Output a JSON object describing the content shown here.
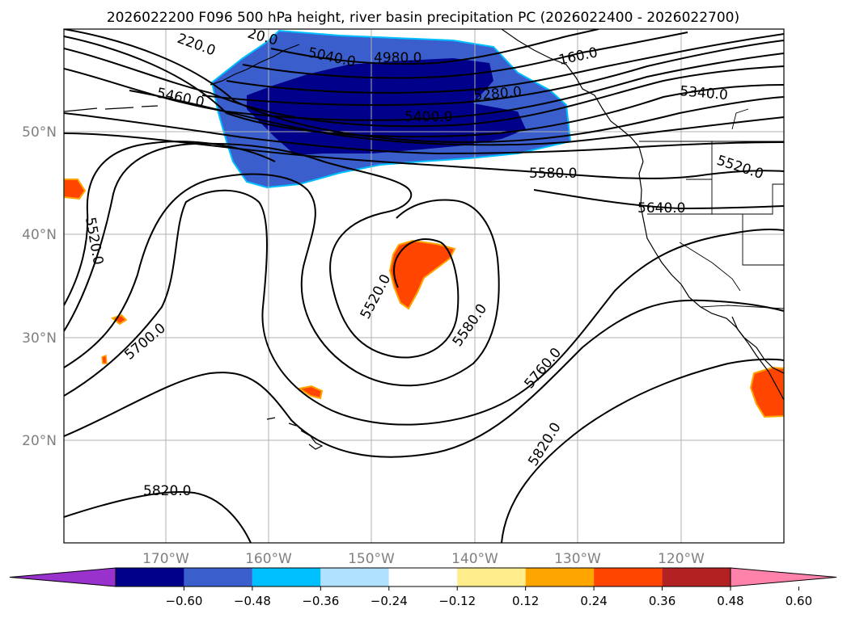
{
  "title": "2026022200 F096 500 hPa height, river basin precipitation PC (2026022400 - 2026022700)",
  "lat_labels": [
    "50°N",
    "40°N",
    "30°N",
    "20°N"
  ],
  "lon_labels": [
    "170°W",
    "160°W",
    "150°W",
    "140°W",
    "130°W",
    "120°W"
  ],
  "contour_labels": [
    "220.0",
    "20.0",
    "5040.0",
    "4980.0",
    "160.0",
    "5460.0",
    "5280.0",
    "5340.0",
    "5400.0",
    "5580.0",
    "5520.0",
    "5640.0",
    "5520.0",
    "5520.0",
    "5580.0",
    "5700.0",
    "5760.0",
    "5820.0",
    "5820.0"
  ],
  "colorbar": {
    "tick_labels": [
      "−0.60",
      "−0.48",
      "−0.36",
      "−0.24",
      "−0.12",
      "0.12",
      "0.24",
      "0.36",
      "0.48",
      "0.60"
    ],
    "colors": [
      "#9932cc",
      "#00008b",
      "#3a5fcd",
      "#00bfff",
      "#b0e2ff",
      "#ffffff",
      "#ffec8b",
      "#ffa500",
      "#ff4500",
      "#b22222",
      "#ff82ab"
    ]
  },
  "map_colors": {
    "dark_blue": "#00008b",
    "mid_blue": "#3a5fcd",
    "cyan": "#00bfff",
    "orange_red": "#ff4500",
    "orange": "#ffa500",
    "yellow": "#ffec8b"
  }
}
